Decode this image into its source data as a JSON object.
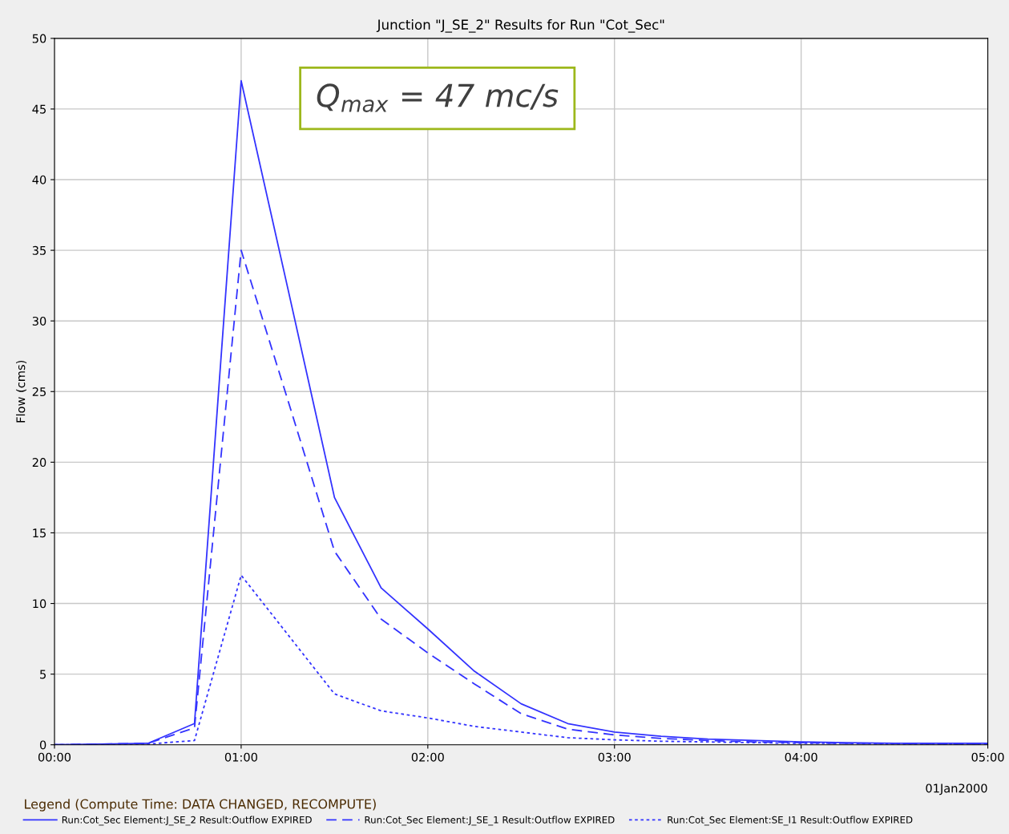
{
  "chart_data": {
    "type": "line",
    "title": "Junction \"J_SE_2\" Results for Run \"Cot_Sec\"",
    "ylabel": "Flow (cms)",
    "x": [
      0,
      0.25,
      0.5,
      0.75,
      1,
      1.25,
      1.5,
      1.75,
      2,
      2.25,
      2.5,
      2.75,
      3,
      3.25,
      3.5,
      3.75,
      4,
      4.25,
      4.5,
      4.75,
      5
    ],
    "series": [
      {
        "name": "Run:Cot_Sec Element:J_SE_2 Result:Outflow EXPIRED",
        "color": "#3333ff",
        "line_style": "solid",
        "values": [
          0,
          0.05,
          0.1,
          1.5,
          47,
          32.3,
          17.5,
          11.1,
          8.2,
          5.2,
          2.9,
          1.5,
          0.9,
          0.6,
          0.4,
          0.3,
          0.2,
          0.15,
          0.1,
          0.1,
          0.1
        ]
      },
      {
        "name": "Run:Cot_Sec Element:J_SE_1 Result:Outflow EXPIRED",
        "color": "#3333ff",
        "line_style": "dashed",
        "values": [
          0,
          0.05,
          0.1,
          1.2,
          35,
          24.4,
          13.7,
          8.9,
          6.5,
          4.3,
          2.2,
          1.1,
          0.7,
          0.45,
          0.3,
          0.2,
          0.15,
          0.1,
          0.1,
          0.05,
          0.05
        ]
      },
      {
        "name": "Run:Cot_Sec Element:SE_I1 Result:Outflow EXPIRED",
        "color": "#3333ff",
        "line_style": "dotted",
        "values": [
          0,
          0,
          0.05,
          0.3,
          12,
          7.8,
          3.6,
          2.4,
          1.9,
          1.3,
          0.9,
          0.5,
          0.35,
          0.25,
          0.2,
          0.15,
          0.1,
          0.1,
          0.05,
          0.05,
          0.05
        ]
      }
    ],
    "xlim": [
      0,
      5
    ],
    "xticks": [
      {
        "value": 0,
        "label": "00:00"
      },
      {
        "value": 1,
        "label": "01:00"
      },
      {
        "value": 2,
        "label": "02:00"
      },
      {
        "value": 3,
        "label": "03:00"
      },
      {
        "value": 4,
        "label": "04:00"
      },
      {
        "value": 5,
        "label": "05:00"
      }
    ],
    "ylim": [
      0,
      50
    ],
    "yticks": [
      0,
      5,
      10,
      15,
      20,
      25,
      30,
      35,
      40,
      45,
      50
    ],
    "grid": true,
    "legend": "bottom",
    "marker": "none",
    "legend_title": "Legend (Compute Time: DATA CHANGED, RECOMPUTE)",
    "annotations": [
      "Q$_{max}$ = 47 mc/s",
      "01Jan2000"
    ]
  }
}
